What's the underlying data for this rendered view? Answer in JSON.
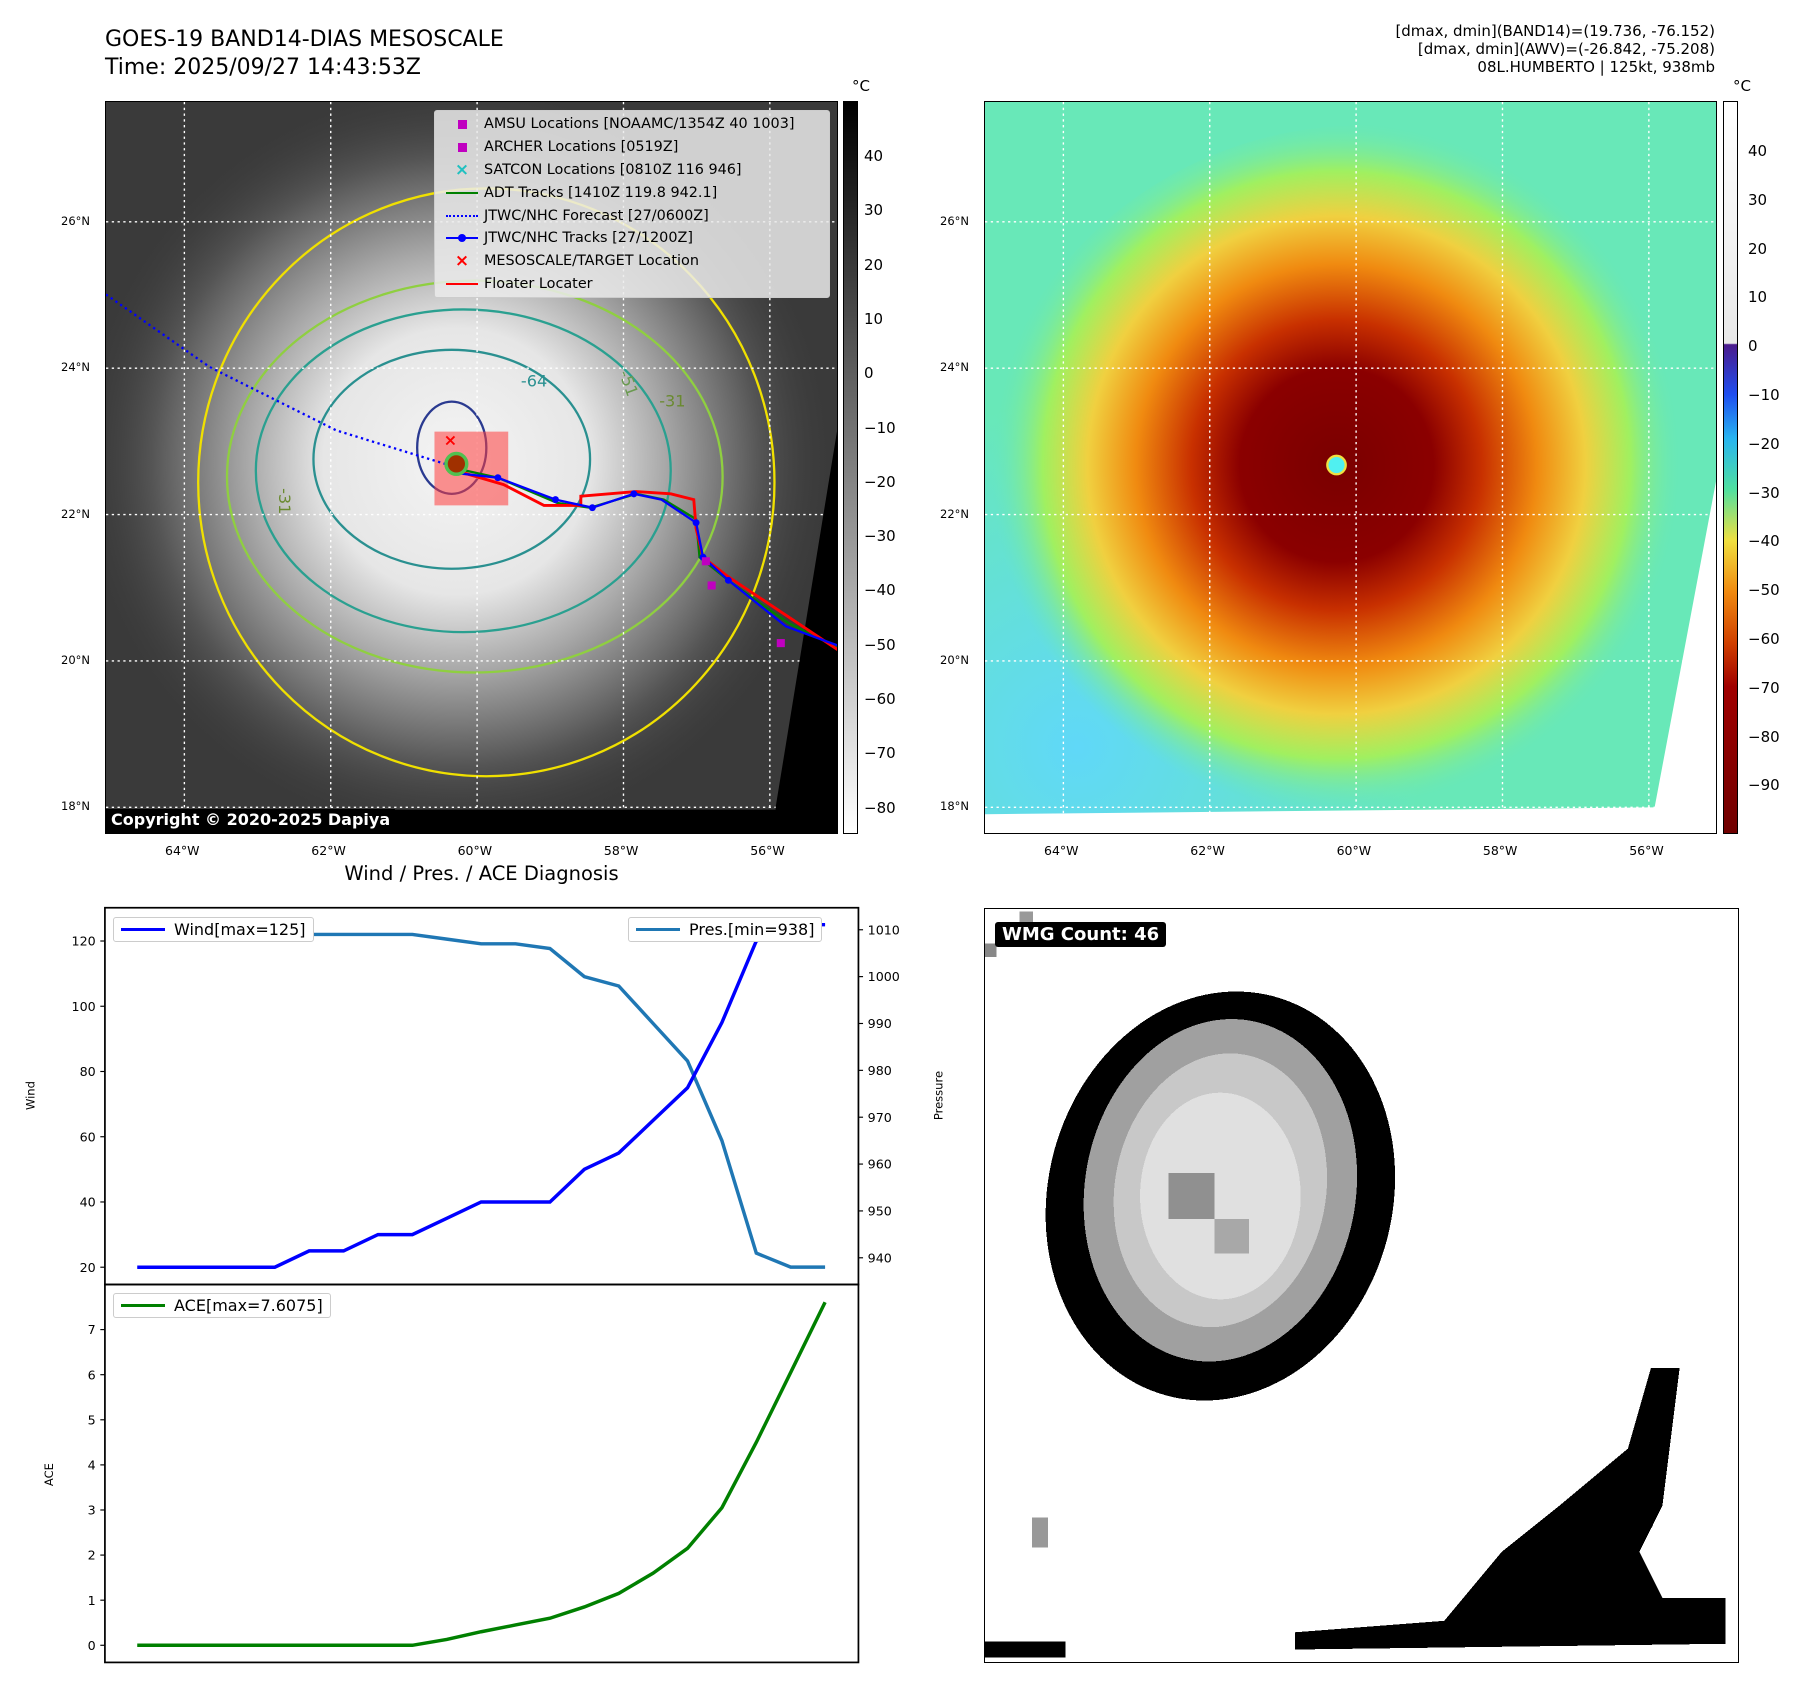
{
  "header": {
    "title_line1": "GOES-19 BAND14-DIAS MESOSCALE",
    "title_line2": "Time: 2025/09/27 14:43:53Z",
    "info_line1": "[dmax, dmin](BAND14)=(19.736, -76.152)",
    "info_line2": "[dmax, dmin](AWV)=(-26.842, -75.208)",
    "info_line3": "08L.HUMBERTO | 125kt, 938mb"
  },
  "map": {
    "lat_labels": [
      "26°N",
      "24°N",
      "22°N",
      "20°N",
      "18°N"
    ],
    "lon_labels": [
      "64°W",
      "62°W",
      "60°W",
      "58°W",
      "56°W"
    ],
    "unit": "°C",
    "left_colorbar_ticks": [
      "40",
      "30",
      "20",
      "10",
      "0",
      "−10",
      "−20",
      "−30",
      "−40",
      "−50",
      "−60",
      "−70",
      "−80"
    ],
    "right_colorbar_ticks": [
      "40",
      "30",
      "20",
      "10",
      "0",
      "−10",
      "−20",
      "−30",
      "−40",
      "−50",
      "−60",
      "−70",
      "−80",
      "−90"
    ],
    "contour_labels": [
      "-64",
      "-31",
      "-31",
      "-51"
    ],
    "copyright": "Copyright © 2020-2025 Dapiya",
    "colors": {
      "amsu": "#c000c0",
      "satcon": "#20c0c0",
      "adt": "#008000",
      "forecast": "#0000ff",
      "track": "#0000ff",
      "target": "#ff0000",
      "floater": "#ff0000"
    },
    "legend": [
      {
        "icon": "square-marker",
        "label": "AMSU Locations [NOAAMC/1354Z 40 1003]"
      },
      {
        "icon": "square-marker",
        "label": "ARCHER Locations [0519Z]"
      },
      {
        "icon": "x-marker",
        "label": "SATCON Locations [0810Z 116 946]"
      },
      {
        "icon": "solid-line",
        "label": "ADT Tracks [1410Z 119.8 942.1]"
      },
      {
        "icon": "dotted-line",
        "label": "JTWC/NHC Forecast [27/0600Z]"
      },
      {
        "icon": "line-dot",
        "label": "JTWC/NHC Tracks [27/1200Z]"
      },
      {
        "icon": "x-marker",
        "label": "MESOSCALE/TARGET Location"
      },
      {
        "icon": "solid-line",
        "label": "Floater Locater"
      }
    ]
  },
  "wmg": {
    "label": "WMG Count: 46"
  },
  "chart_data": [
    {
      "type": "line",
      "title": "Wind / Pres. / ACE Diagnosis",
      "x": [
        0,
        1,
        2,
        3,
        4,
        5,
        6,
        7,
        8,
        9,
        10,
        11,
        12,
        13,
        14,
        15,
        16,
        17,
        18,
        19,
        20
      ],
      "series": [
        {
          "name": "Wind[max=125]",
          "axis": "left",
          "color": "#0000ff",
          "values": [
            20,
            20,
            20,
            20,
            20,
            25,
            25,
            30,
            30,
            35,
            40,
            40,
            40,
            50,
            55,
            65,
            75,
            95,
            120,
            125,
            125
          ]
        },
        {
          "name": "Pres.[min=938]",
          "axis": "right",
          "color": "#1f77b4",
          "values": [
            1010,
            1010,
            1010,
            1010,
            1010,
            1009,
            1009,
            1009,
            1009,
            1008,
            1007,
            1007,
            1006,
            1000,
            998,
            990,
            982,
            965,
            941,
            938,
            938
          ]
        }
      ],
      "ylabel": "Wind",
      "ylabel_right": "Pressure",
      "ylim": [
        14.7,
        130.2
      ],
      "ylim_right": [
        934.3,
        1014.7
      ],
      "yticks": [
        "20",
        "40",
        "60",
        "80",
        "100",
        "120"
      ],
      "yticks_right": [
        "940",
        "950",
        "960",
        "970",
        "980",
        "990",
        "1000",
        "1010"
      ],
      "legend_placement": [
        "upper-left",
        "upper-right"
      ]
    },
    {
      "type": "line",
      "x": [
        0,
        1,
        2,
        3,
        4,
        5,
        6,
        7,
        8,
        9,
        10,
        11,
        12,
        13,
        14,
        15,
        16,
        17,
        18,
        19,
        20
      ],
      "series": [
        {
          "name": "ACE[max=7.6075]",
          "color": "#008000",
          "values": [
            0,
            0,
            0,
            0,
            0,
            0,
            0,
            0,
            0,
            0.13,
            0.3,
            0.45,
            0.6,
            0.85,
            1.15,
            1.6,
            2.15,
            3.05,
            4.5,
            6.05,
            7.6075
          ]
        }
      ],
      "ylabel": "ACE",
      "ylim": [
        -0.38,
        8.0
      ],
      "yticks": [
        "0",
        "1",
        "2",
        "3",
        "4",
        "5",
        "6",
        "7"
      ],
      "legend_placement": "upper-left"
    }
  ]
}
